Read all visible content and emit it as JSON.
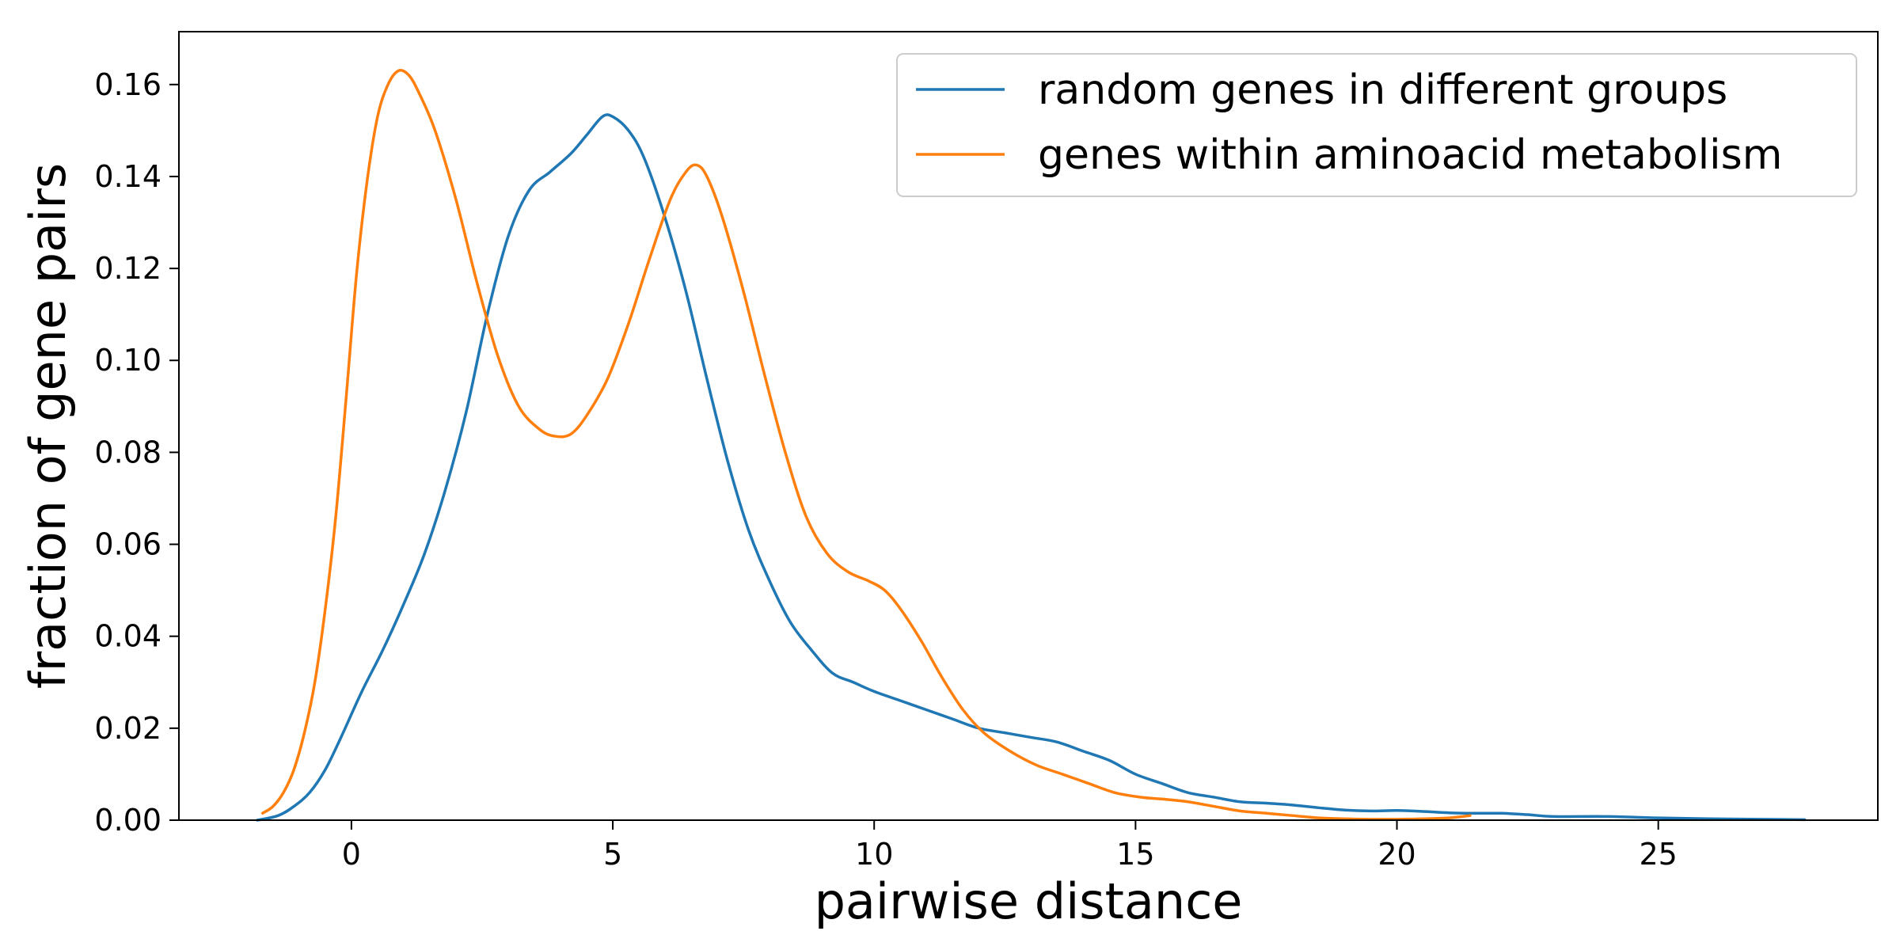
{
  "chart_data": {
    "type": "line",
    "title": "",
    "xlabel": "pairwise distance",
    "ylabel": "fraction of gene pairs",
    "xlim": [
      -3.3,
      29.2
    ],
    "ylim": [
      0,
      0.1715
    ],
    "x_ticks": [
      0,
      5,
      10,
      15,
      20,
      25
    ],
    "x_tick_labels": [
      "0",
      "5",
      "10",
      "15",
      "20",
      "25"
    ],
    "y_ticks": [
      0,
      0.02,
      0.04,
      0.06,
      0.08,
      0.1,
      0.12,
      0.14,
      0.16
    ],
    "y_tick_labels": [
      "0.00",
      "0.02",
      "0.04",
      "0.06",
      "0.08",
      "0.10",
      "0.12",
      "0.14",
      "0.16"
    ],
    "grid": false,
    "legend_position": "top-right",
    "series": [
      {
        "name": "random genes in different groups",
        "color": "#1f77b4",
        "points": [
          [
            -1.8,
            0.0
          ],
          [
            -1.4,
            0.001
          ],
          [
            -1.1,
            0.003
          ],
          [
            -0.8,
            0.006
          ],
          [
            -0.5,
            0.011
          ],
          [
            -0.2,
            0.018
          ],
          [
            0.2,
            0.028
          ],
          [
            0.6,
            0.037
          ],
          [
            1.0,
            0.047
          ],
          [
            1.4,
            0.058
          ],
          [
            1.8,
            0.072
          ],
          [
            2.2,
            0.089
          ],
          [
            2.6,
            0.11
          ],
          [
            3.0,
            0.127
          ],
          [
            3.4,
            0.137
          ],
          [
            3.8,
            0.141
          ],
          [
            4.2,
            0.145
          ],
          [
            4.5,
            0.149
          ],
          [
            4.8,
            0.153
          ],
          [
            5.0,
            0.153
          ],
          [
            5.3,
            0.15
          ],
          [
            5.6,
            0.144
          ],
          [
            6.0,
            0.131
          ],
          [
            6.4,
            0.115
          ],
          [
            6.8,
            0.096
          ],
          [
            7.2,
            0.078
          ],
          [
            7.6,
            0.063
          ],
          [
            8.0,
            0.052
          ],
          [
            8.4,
            0.043
          ],
          [
            8.8,
            0.037
          ],
          [
            9.2,
            0.032
          ],
          [
            9.6,
            0.03
          ],
          [
            10.0,
            0.028
          ],
          [
            10.5,
            0.026
          ],
          [
            11.0,
            0.024
          ],
          [
            11.5,
            0.022
          ],
          [
            12.0,
            0.02
          ],
          [
            12.5,
            0.019
          ],
          [
            13.0,
            0.018
          ],
          [
            13.5,
            0.017
          ],
          [
            14.0,
            0.015
          ],
          [
            14.5,
            0.013
          ],
          [
            15.0,
            0.01
          ],
          [
            15.5,
            0.008
          ],
          [
            16.0,
            0.006
          ],
          [
            16.5,
            0.005
          ],
          [
            17.0,
            0.004
          ],
          [
            17.5,
            0.0037
          ],
          [
            18.0,
            0.0033
          ],
          [
            18.5,
            0.0027
          ],
          [
            19.0,
            0.0022
          ],
          [
            19.5,
            0.002
          ],
          [
            20.0,
            0.0021
          ],
          [
            20.5,
            0.0019
          ],
          [
            21.0,
            0.0016
          ],
          [
            21.5,
            0.0015
          ],
          [
            22.0,
            0.0015
          ],
          [
            22.5,
            0.0012
          ],
          [
            23.0,
            0.0008
          ],
          [
            24.0,
            0.0008
          ],
          [
            25.0,
            0.0005
          ],
          [
            26.0,
            0.0003
          ],
          [
            27.0,
            0.0002
          ],
          [
            27.8,
            0.0001
          ]
        ]
      },
      {
        "name": "genes within aminoacid metabolism",
        "color": "#ff7f0e",
        "points": [
          [
            -1.7,
            0.0015
          ],
          [
            -1.5,
            0.003
          ],
          [
            -1.3,
            0.006
          ],
          [
            -1.1,
            0.011
          ],
          [
            -0.9,
            0.019
          ],
          [
            -0.7,
            0.03
          ],
          [
            -0.5,
            0.046
          ],
          [
            -0.3,
            0.066
          ],
          [
            -0.1,
            0.092
          ],
          [
            0.1,
            0.119
          ],
          [
            0.3,
            0.139
          ],
          [
            0.5,
            0.153
          ],
          [
            0.7,
            0.16
          ],
          [
            0.9,
            0.163
          ],
          [
            1.1,
            0.162
          ],
          [
            1.3,
            0.158
          ],
          [
            1.6,
            0.15
          ],
          [
            2.0,
            0.135
          ],
          [
            2.4,
            0.117
          ],
          [
            2.8,
            0.101
          ],
          [
            3.2,
            0.09
          ],
          [
            3.6,
            0.085
          ],
          [
            3.9,
            0.0835
          ],
          [
            4.2,
            0.084
          ],
          [
            4.5,
            0.088
          ],
          [
            4.9,
            0.096
          ],
          [
            5.3,
            0.108
          ],
          [
            5.7,
            0.122
          ],
          [
            6.1,
            0.135
          ],
          [
            6.4,
            0.141
          ],
          [
            6.6,
            0.1425
          ],
          [
            6.8,
            0.14
          ],
          [
            7.1,
            0.131
          ],
          [
            7.5,
            0.115
          ],
          [
            7.9,
            0.097
          ],
          [
            8.3,
            0.08
          ],
          [
            8.7,
            0.066
          ],
          [
            9.1,
            0.058
          ],
          [
            9.5,
            0.054
          ],
          [
            9.9,
            0.052
          ],
          [
            10.2,
            0.05
          ],
          [
            10.5,
            0.046
          ],
          [
            10.9,
            0.039
          ],
          [
            11.3,
            0.031
          ],
          [
            11.7,
            0.024
          ],
          [
            12.1,
            0.019
          ],
          [
            12.6,
            0.015
          ],
          [
            13.1,
            0.012
          ],
          [
            13.6,
            0.01
          ],
          [
            14.1,
            0.008
          ],
          [
            14.6,
            0.006
          ],
          [
            15.1,
            0.005
          ],
          [
            15.6,
            0.0045
          ],
          [
            16.0,
            0.004
          ],
          [
            16.5,
            0.003
          ],
          [
            17.0,
            0.002
          ],
          [
            17.5,
            0.0015
          ],
          [
            18.0,
            0.001
          ],
          [
            18.5,
            0.0005
          ],
          [
            19.0,
            0.0003
          ],
          [
            19.5,
            0.0002
          ],
          [
            20.0,
            0.0002
          ],
          [
            20.5,
            0.0003
          ],
          [
            21.0,
            0.0005
          ],
          [
            21.4,
            0.001
          ]
        ]
      }
    ]
  }
}
